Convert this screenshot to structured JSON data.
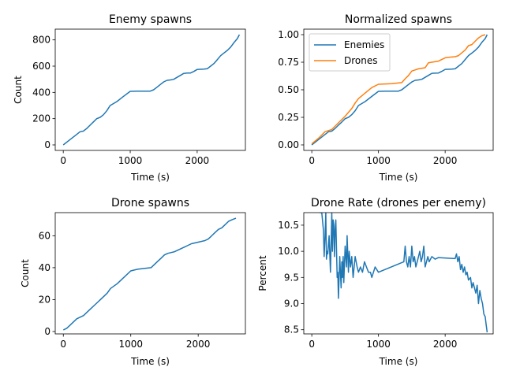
{
  "chart_data": [
    {
      "type": "line",
      "title": "Enemy spawns",
      "xlabel": "Time (s)",
      "ylabel": "Count",
      "xlim": [
        -120,
        2720
      ],
      "ylim": [
        -42,
        882
      ],
      "xticks": [
        0,
        1000,
        2000
      ],
      "yticks": [
        0,
        200,
        400,
        600,
        800
      ],
      "series": [
        {
          "color": "#1f77b4",
          "x": [
            0,
            100,
            200,
            250,
            300,
            350,
            400,
            450,
            500,
            550,
            600,
            650,
            700,
            800,
            900,
            1000,
            1100,
            1200,
            1300,
            1350,
            1400,
            1450,
            1500,
            1550,
            1600,
            1650,
            1700,
            1750,
            1800,
            1850,
            1900,
            1950,
            2000,
            2100,
            2150,
            2200,
            2250,
            2300,
            2350,
            2400,
            2450,
            2500,
            2550,
            2600,
            2630
          ],
          "y": [
            0,
            40,
            80,
            100,
            105,
            125,
            150,
            175,
            200,
            210,
            230,
            260,
            300,
            330,
            370,
            408,
            410,
            410,
            410,
            420,
            440,
            460,
            480,
            492,
            495,
            500,
            515,
            530,
            545,
            547,
            548,
            560,
            575,
            578,
            580,
            600,
            620,
            650,
            680,
            700,
            720,
            745,
            780,
            810,
            840
          ]
        }
      ]
    },
    {
      "type": "line",
      "title": "Normalized spawns",
      "xlabel": "Time (s)",
      "ylabel": "",
      "xlim": [
        -120,
        2720
      ],
      "ylim": [
        -0.05,
        1.05
      ],
      "xticks": [
        0,
        1000,
        2000
      ],
      "yticks": [
        0.0,
        0.25,
        0.5,
        0.75,
        1.0
      ],
      "yticklabels": [
        "0.00",
        "0.25",
        "0.50",
        "0.75",
        "1.00"
      ],
      "legend": "upper-left",
      "series": [
        {
          "name": "Enemies",
          "color": "#1f77b4",
          "x": [
            0,
            100,
            200,
            250,
            300,
            350,
            400,
            450,
            500,
            550,
            600,
            650,
            700,
            800,
            900,
            1000,
            1100,
            1200,
            1300,
            1350,
            1400,
            1450,
            1500,
            1550,
            1600,
            1650,
            1700,
            1750,
            1800,
            1850,
            1900,
            1950,
            2000,
            2100,
            2150,
            2200,
            2250,
            2300,
            2350,
            2400,
            2450,
            2500,
            2550,
            2600,
            2630
          ],
          "y": [
            0.0,
            0.048,
            0.095,
            0.119,
            0.125,
            0.149,
            0.179,
            0.208,
            0.238,
            0.25,
            0.274,
            0.31,
            0.357,
            0.393,
            0.44,
            0.486,
            0.488,
            0.488,
            0.488,
            0.5,
            0.524,
            0.548,
            0.571,
            0.586,
            0.589,
            0.595,
            0.613,
            0.631,
            0.649,
            0.651,
            0.652,
            0.667,
            0.685,
            0.688,
            0.69,
            0.714,
            0.738,
            0.774,
            0.81,
            0.833,
            0.857,
            0.887,
            0.929,
            0.964,
            1.0
          ]
        },
        {
          "name": "Drones",
          "color": "#ff7f0e",
          "x": [
            0,
            100,
            200,
            300,
            400,
            500,
            600,
            650,
            700,
            800,
            900,
            1000,
            1100,
            1200,
            1350,
            1400,
            1450,
            1500,
            1550,
            1600,
            1700,
            1750,
            1800,
            1900,
            2000,
            2050,
            2150,
            2200,
            2300,
            2350,
            2400,
            2450,
            2500,
            2550,
            2600
          ],
          "y": [
            0.01,
            0.06,
            0.12,
            0.14,
            0.2,
            0.26,
            0.33,
            0.38,
            0.42,
            0.47,
            0.52,
            0.55,
            0.553,
            0.555,
            0.565,
            0.6,
            0.63,
            0.67,
            0.68,
            0.69,
            0.7,
            0.745,
            0.75,
            0.76,
            0.79,
            0.795,
            0.8,
            0.81,
            0.86,
            0.9,
            0.91,
            0.94,
            0.97,
            0.99,
            1.0
          ]
        }
      ]
    },
    {
      "type": "line",
      "title": "Drone spawns",
      "xlabel": "Time (s)",
      "ylabel": "Count",
      "xlim": [
        -120,
        2700
      ],
      "ylim": [
        -1.5,
        74.5
      ],
      "xticks": [
        0,
        1000,
        2000
      ],
      "yticks": [
        0,
        20,
        40,
        60
      ],
      "series": [
        {
          "color": "#1f77b4",
          "x": [
            0,
            50,
            100,
            150,
            200,
            300,
            350,
            400,
            450,
            500,
            550,
            600,
            650,
            700,
            800,
            900,
            1000,
            1100,
            1200,
            1300,
            1350,
            1400,
            1450,
            1500,
            1550,
            1600,
            1650,
            1700,
            1750,
            1800,
            1850,
            1900,
            2000,
            2100,
            2150,
            2200,
            2250,
            2300,
            2350,
            2400,
            2450,
            2500,
            2560
          ],
          "y": [
            1,
            2,
            4,
            6,
            8,
            10,
            12,
            14,
            16,
            18,
            20,
            22,
            24,
            27,
            30,
            34,
            38,
            39,
            39.5,
            40,
            42,
            44,
            46,
            48,
            49,
            49.5,
            50,
            51,
            52,
            53,
            54,
            55,
            56,
            57,
            58,
            60,
            62,
            64,
            65,
            67,
            69,
            70,
            71
          ]
        }
      ]
    },
    {
      "type": "line",
      "title": "Drone Rate (drones per enemy)",
      "xlabel": "Time (s)",
      "ylabel": "Percent",
      "xlim": [
        -120,
        2720
      ],
      "ylim": [
        8.42,
        10.74
      ],
      "xticks": [
        0,
        1000,
        2000
      ],
      "yticks": [
        8.5,
        9.0,
        9.5,
        10.0,
        10.5
      ],
      "yticklabels": [
        "8.5",
        "9.0",
        "9.5",
        "10.0",
        "10.5"
      ],
      "series": [
        {
          "color": "#1f77b4",
          "x": [
            120,
            150,
            175,
            185,
            200,
            210,
            220,
            230,
            240,
            260,
            280,
            300,
            310,
            320,
            330,
            340,
            350,
            360,
            380,
            390,
            400,
            420,
            440,
            450,
            460,
            470,
            480,
            500,
            520,
            530,
            550,
            560,
            580,
            600,
            620,
            650,
            680,
            700,
            730,
            760,
            790,
            820,
            850,
            880,
            900,
            950,
            1000,
            1380,
            1400,
            1420,
            1440,
            1460,
            1480,
            1500,
            1520,
            1540,
            1560,
            1580,
            1600,
            1620,
            1640,
            1660,
            1680,
            1700,
            1720,
            1740,
            1760,
            1800,
            1850,
            1900,
            2150,
            2170,
            2190,
            2210,
            2230,
            2250,
            2270,
            2290,
            2310,
            2330,
            2350,
            2380,
            2400,
            2420,
            2440,
            2460,
            2480,
            2500,
            2520,
            2540,
            2560,
            2580,
            2600,
            2615,
            2630
          ],
          "y": [
            10.74,
            10.74,
            10.4,
            9.9,
            10.3,
            10.74,
            9.85,
            10.0,
            9.95,
            10.3,
            9.6,
            10.74,
            10.0,
            10.6,
            10.5,
            9.9,
            10.4,
            10.6,
            9.5,
            9.6,
            9.1,
            9.9,
            9.3,
            9.8,
            9.5,
            9.9,
            9.4,
            10.1,
            9.7,
            10.3,
            9.6,
            10.0,
            9.7,
            9.9,
            9.5,
            9.9,
            9.7,
            9.6,
            9.7,
            9.6,
            9.8,
            9.7,
            9.6,
            9.6,
            9.5,
            9.7,
            9.6,
            9.8,
            10.1,
            9.8,
            9.7,
            9.9,
            9.7,
            10.1,
            9.8,
            9.9,
            9.7,
            9.8,
            9.9,
            10.0,
            9.8,
            9.9,
            10.1,
            9.7,
            9.8,
            9.9,
            9.8,
            9.9,
            9.85,
            9.88,
            9.86,
            9.95,
            9.8,
            9.9,
            9.65,
            9.75,
            9.6,
            9.7,
            9.55,
            9.6,
            9.45,
            9.5,
            9.3,
            9.4,
            9.3,
            9.2,
            9.35,
            9.0,
            9.25,
            9.1,
            9.0,
            8.8,
            8.75,
            8.6,
            8.45
          ]
        }
      ]
    }
  ]
}
